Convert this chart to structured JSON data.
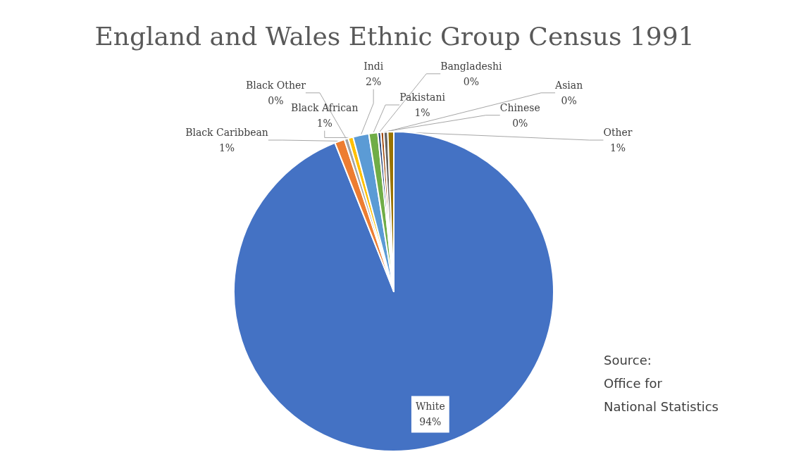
{
  "chart_data": {
    "type": "pie",
    "title": "England and Wales Ethnic Group Census 1991",
    "categories": [
      "White",
      "Black Caribbean",
      "Black Other",
      "Black African",
      "Indi",
      "Pakistani",
      "Bangladeshi",
      "Chinese",
      "Asian",
      "Other"
    ],
    "values": [
      94.0,
      1.0,
      0.4,
      0.5,
      1.6,
      0.9,
      0.3,
      0.3,
      0.4,
      0.6
    ],
    "value_labels": [
      "94%",
      "1%",
      "0%",
      "1%",
      "2%",
      "1%",
      "0%",
      "0%",
      "0%",
      "1%"
    ],
    "colors": [
      "#4472c4",
      "#ed7d31",
      "#a5a5a5",
      "#ffc000",
      "#5b9bd5",
      "#70ad47",
      "#264478",
      "#9e480e",
      "#636363",
      "#997300"
    ],
    "annotations": [
      "Source:\nOffice for\nNational Statistics"
    ],
    "legend": false
  }
}
